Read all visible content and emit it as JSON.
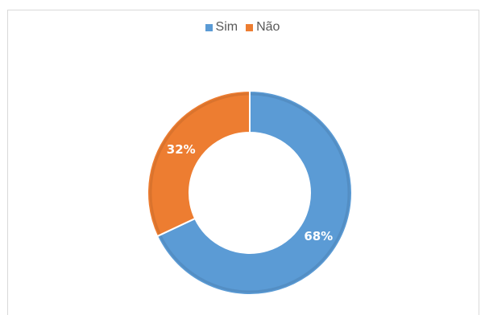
{
  "chart_data": {
    "type": "pie",
    "donut": true,
    "categories": [
      "Sim",
      "Não"
    ],
    "values": [
      68,
      32
    ],
    "labels": [
      "68%",
      "32%"
    ],
    "colors": [
      "#5b9bd5",
      "#ed7d31"
    ],
    "title": "",
    "legend": "top"
  }
}
